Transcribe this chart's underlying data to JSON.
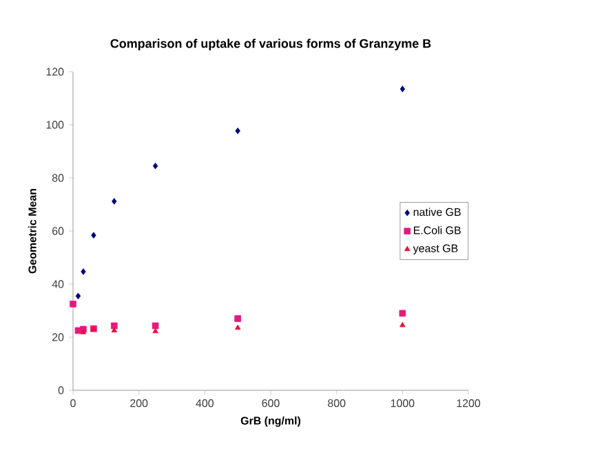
{
  "chart_data": {
    "type": "scatter",
    "title": "Comparison of uptake of various forms of Granzyme B",
    "xlabel": "GrB (ng/ml)",
    "ylabel": "Geometric Mean",
    "xlim": [
      0,
      1200
    ],
    "xticks": [
      0,
      200,
      400,
      600,
      800,
      1000,
      1200
    ],
    "ylim": [
      0,
      120
    ],
    "yticks": [
      0,
      20,
      40,
      60,
      80,
      100,
      120
    ],
    "grid": false,
    "legend": "right",
    "series": [
      {
        "name": "native GB",
        "color": "#000080",
        "marker": "diamond",
        "x": [
          15.6,
          31.25,
          62.5,
          125,
          250,
          500,
          1000
        ],
        "values": [
          35.5,
          44.7,
          58.4,
          71.2,
          84.5,
          97.7,
          113.5
        ]
      },
      {
        "name": "E.Coli GB",
        "color": "#e6197d",
        "marker": "square",
        "x": [
          0,
          15.6,
          31.25,
          62.5,
          125,
          250,
          500,
          1000
        ],
        "values": [
          32.5,
          22.5,
          23,
          23.2,
          24.3,
          24.3,
          27,
          29
        ]
      },
      {
        "name": "yeast GB",
        "color": "#e8103a",
        "marker": "triangle",
        "x": [
          31.25,
          62.5,
          125,
          250,
          500,
          1000
        ],
        "values": [
          21.8,
          23,
          22.5,
          22.2,
          23.5,
          24.5
        ]
      }
    ]
  }
}
